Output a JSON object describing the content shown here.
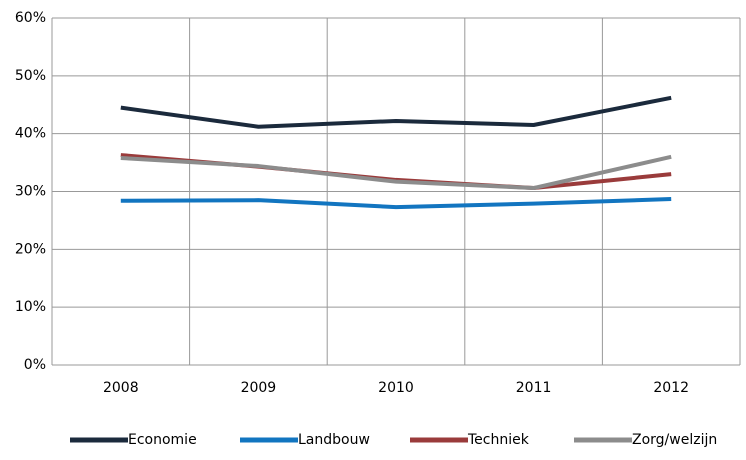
{
  "chart_data": {
    "type": "line",
    "categories": [
      "2008",
      "2009",
      "2010",
      "2011",
      "2012"
    ],
    "series": [
      {
        "name": "Economie",
        "color": "#1b2a3c",
        "values": [
          44.5,
          41.2,
          42.2,
          41.5,
          46.2
        ]
      },
      {
        "name": "Landbouw",
        "color": "#1275c0",
        "values": [
          28.4,
          28.5,
          27.3,
          27.9,
          28.7
        ]
      },
      {
        "name": "Techniek",
        "color": "#9a3b3b",
        "values": [
          36.3,
          34.3,
          32.0,
          30.6,
          33.0
        ]
      },
      {
        "name": "Zorg/welzijn",
        "color": "#8c8c8c",
        "values": [
          35.8,
          34.4,
          31.7,
          30.6,
          36.0
        ]
      }
    ],
    "ylim": [
      0,
      60
    ],
    "yticks": [
      {
        "value": 0,
        "label": "0%"
      },
      {
        "value": 10,
        "label": "10%"
      },
      {
        "value": 20,
        "label": "20%"
      },
      {
        "value": 30,
        "label": "30%"
      },
      {
        "value": 40,
        "label": "40%"
      },
      {
        "value": 50,
        "label": "50%"
      },
      {
        "value": 60,
        "label": "60%"
      }
    ],
    "grid": true,
    "legend": "bottom"
  }
}
